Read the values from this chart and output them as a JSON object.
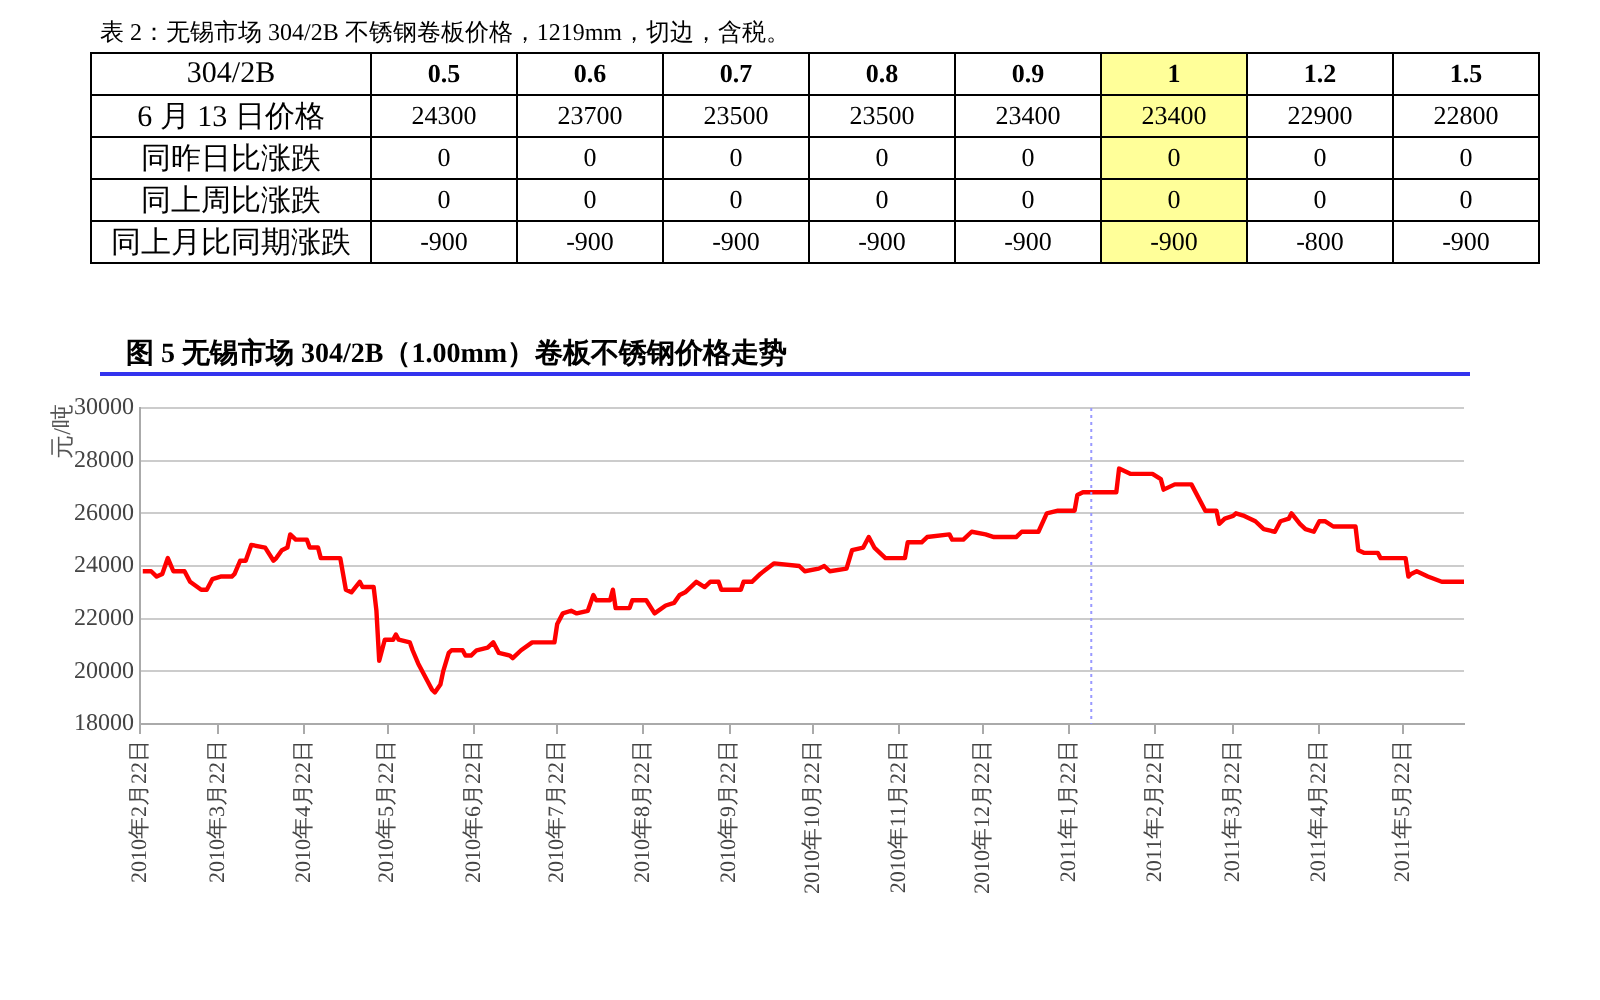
{
  "chart_data": [
    {
      "type": "heatmap",
      "title": "表 2：无锡市场 304/2B 不锈钢卷板价格，1219mm，切边，含税。",
      "ylabel": "304/2B",
      "data_labels": true,
      "categories": [
        "0.5",
        "0.6",
        "0.7",
        "0.8",
        "0.9",
        "1",
        "1.2",
        "1.5"
      ],
      "y_categories": [
        "6 月 13 日价格",
        "同昨日比涨跌",
        "同上周比涨跌",
        "同上月比同期涨跌"
      ],
      "cells": [
        [
          24300,
          23700,
          23500,
          23500,
          23400,
          23400,
          22900,
          22800
        ],
        [
          0,
          0,
          0,
          0,
          0,
          0,
          0,
          0
        ],
        [
          0,
          0,
          0,
          0,
          0,
          0,
          0,
          0
        ],
        [
          -900,
          -900,
          -900,
          -900,
          -900,
          -900,
          -800,
          -900
        ]
      ]
    },
    {
      "type": "line",
      "title": "图 5  无锡市场 304/2B（1.00mm）卷板不锈钢价格走势",
      "ylabel": "元/吨",
      "x": [
        "2010-02-23",
        "2010-02-26",
        "2010-02-28",
        "2010-03-02",
        "2010-03-04",
        "2010-03-06",
        "2010-03-10",
        "2010-03-12",
        "2010-03-16",
        "2010-03-18",
        "2010-03-20",
        "2010-03-23",
        "2010-03-27",
        "2010-03-28",
        "2010-03-30",
        "2010-04-01",
        "2010-04-03",
        "2010-04-08",
        "2010-04-11",
        "2010-04-12",
        "2010-04-14",
        "2010-04-16",
        "2010-04-17",
        "2010-04-19",
        "2010-04-23",
        "2010-04-24",
        "2010-04-27",
        "2010-04-28",
        "2010-05-05",
        "2010-05-07",
        "2010-05-09",
        "2010-05-12",
        "2010-05-13",
        "2010-05-17",
        "2010-05-18",
        "2010-05-19",
        "2010-05-21",
        "2010-05-24",
        "2010-05-25",
        "2010-05-26",
        "2010-05-30",
        "2010-05-31",
        "2010-06-02",
        "2010-06-04",
        "2010-06-07",
        "2010-06-08",
        "2010-06-10",
        "2010-06-11",
        "2010-06-13",
        "2010-06-14",
        "2010-06-18",
        "2010-06-19",
        "2010-06-21",
        "2010-06-23",
        "2010-06-27",
        "2010-06-29",
        "2010-07-01",
        "2010-07-05",
        "2010-07-06",
        "2010-07-09",
        "2010-07-13",
        "2010-07-21",
        "2010-07-22",
        "2010-07-24",
        "2010-07-27",
        "2010-07-29",
        "2010-08-02",
        "2010-08-04",
        "2010-08-05",
        "2010-08-10",
        "2010-08-11",
        "2010-08-12",
        "2010-08-17",
        "2010-08-18",
        "2010-08-23",
        "2010-08-26",
        "2010-08-30",
        "2010-09-02",
        "2010-09-04",
        "2010-09-06",
        "2010-09-08",
        "2010-09-10",
        "2010-09-13",
        "2010-09-15",
        "2010-09-18",
        "2010-09-19",
        "2010-09-26",
        "2010-09-27",
        "2010-09-30",
        "2010-10-03",
        "2010-10-08",
        "2010-10-17",
        "2010-10-19",
        "2010-10-24",
        "2010-10-26",
        "2010-10-28",
        "2010-11-03",
        "2010-11-05",
        "2010-11-09",
        "2010-11-11",
        "2010-11-13",
        "2010-11-17",
        "2010-11-24",
        "2010-11-25",
        "2010-11-30",
        "2010-12-02",
        "2010-12-10",
        "2010-12-11",
        "2010-12-15",
        "2010-12-18",
        "2010-12-23",
        "2010-12-26",
        "2011-01-03",
        "2011-01-05",
        "2011-01-11",
        "2011-01-14",
        "2011-01-18",
        "2011-01-24",
        "2011-01-25",
        "2011-01-27",
        "2011-02-08",
        "2011-02-09",
        "2011-02-13",
        "2011-02-21",
        "2011-02-24",
        "2011-02-25",
        "2011-03-01",
        "2011-03-07",
        "2011-03-09",
        "2011-03-12",
        "2011-03-16",
        "2011-03-17",
        "2011-03-19",
        "2011-03-22",
        "2011-03-23",
        "2011-03-26",
        "2011-03-30",
        "2011-04-02",
        "2011-04-06",
        "2011-04-08",
        "2011-04-11",
        "2011-04-12",
        "2011-04-15",
        "2011-04-17",
        "2011-04-20",
        "2011-04-22",
        "2011-04-24",
        "2011-04-27",
        "2011-05-05",
        "2011-05-06",
        "2011-05-08",
        "2011-05-13",
        "2011-05-14",
        "2011-05-23",
        "2011-05-24",
        "2011-05-25",
        "2011-05-27",
        "2011-05-31",
        "2011-06-05",
        "2011-06-13"
      ],
      "series": [
        {
          "color": "#ff0000",
          "values": [
            23800,
            23800,
            23600,
            23700,
            24300,
            23800,
            23800,
            23400,
            23100,
            23100,
            23500,
            23600,
            23600,
            23700,
            24200,
            24200,
            24800,
            24700,
            24200,
            24300,
            24600,
            24700,
            25200,
            25000,
            25000,
            24700,
            24700,
            24300,
            24300,
            23100,
            23000,
            23400,
            23200,
            23200,
            22300,
            20400,
            21200,
            21200,
            21400,
            21200,
            21100,
            20800,
            20300,
            19900,
            19300,
            19200,
            19500,
            20000,
            20700,
            20800,
            20800,
            20600,
            20600,
            20800,
            20900,
            21100,
            20700,
            20600,
            20500,
            20800,
            21100,
            21100,
            21800,
            22200,
            22300,
            22200,
            22300,
            22900,
            22700,
            22700,
            23100,
            22400,
            22400,
            22700,
            22700,
            22200,
            22500,
            22600,
            22900,
            23000,
            23200,
            23400,
            23200,
            23400,
            23400,
            23100,
            23100,
            23400,
            23400,
            23700,
            24100,
            24000,
            23800,
            23900,
            24000,
            23800,
            23900,
            24600,
            24700,
            25100,
            24700,
            24300,
            24300,
            24900,
            24900,
            25100,
            25200,
            25000,
            25000,
            25300,
            25200,
            25100,
            25100,
            25300,
            25300,
            26000,
            26100,
            26100,
            26700,
            26800,
            26800,
            27700,
            27500,
            27500,
            27300,
            26900,
            27100,
            27100,
            26700,
            26100,
            26100,
            25600,
            25800,
            25900,
            26000,
            25900,
            25700,
            25400,
            25300,
            25700,
            25800,
            26000,
            25600,
            25400,
            25300,
            25700,
            25700,
            25500,
            25500,
            24600,
            24500,
            24500,
            24300,
            24300,
            23600,
            23700,
            23800,
            23600,
            23400,
            23400
          ]
        }
      ],
      "xlim": [
        "2010-02-22",
        "2011-06-13"
      ],
      "xticks": [
        {
          "value": "2010-02-22",
          "label": "2010年2月22日"
        },
        {
          "value": "2010-03-22",
          "label": "2010年3月22日"
        },
        {
          "value": "2010-04-22",
          "label": "2010年4月22日"
        },
        {
          "value": "2010-05-22",
          "label": "2010年5月22日"
        },
        {
          "value": "2010-06-22",
          "label": "2010年6月22日"
        },
        {
          "value": "2010-07-22",
          "label": "2010年7月22日"
        },
        {
          "value": "2010-08-22",
          "label": "2010年8月22日"
        },
        {
          "value": "2010-09-22",
          "label": "2010年9月22日"
        },
        {
          "value": "2010-10-22",
          "label": "2010年10月22日"
        },
        {
          "value": "2010-11-22",
          "label": "2010年11月22日"
        },
        {
          "value": "2010-12-22",
          "label": "2010年12月22日"
        },
        {
          "value": "2011-01-22",
          "label": "2011年1月22日"
        },
        {
          "value": "2011-02-22",
          "label": "2011年2月22日"
        },
        {
          "value": "2011-03-22",
          "label": "2011年3月22日"
        },
        {
          "value": "2011-04-22",
          "label": "2011年4月22日"
        },
        {
          "value": "2011-05-22",
          "label": "2011年5月22日"
        }
      ],
      "ylim": [
        18000,
        30000
      ],
      "yticks": [
        18000,
        20000,
        22000,
        24000,
        26000,
        28000,
        30000
      ],
      "grid": "y",
      "marker": "none",
      "line_style": "solid",
      "ref_lines": [
        {
          "axis": "x",
          "value": "2011-01-30",
          "color": "#9999ff",
          "line_style": "dotted"
        }
      ]
    }
  ]
}
